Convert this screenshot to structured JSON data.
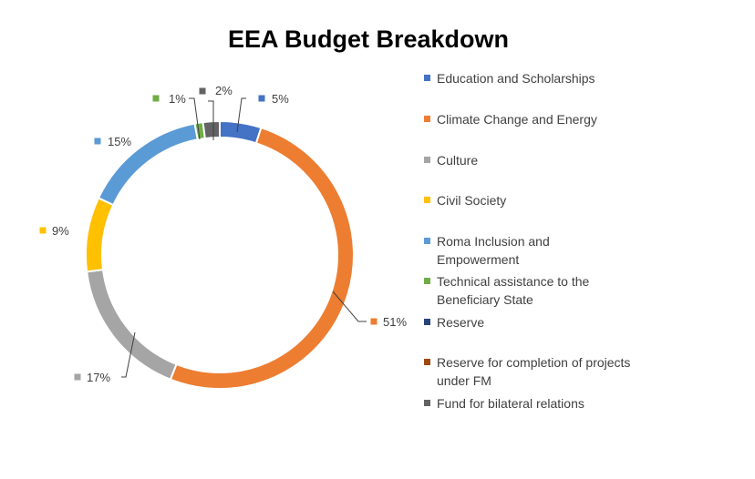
{
  "chart_data": {
    "type": "pie",
    "variant": "doughnut",
    "title": "EEA Budget Breakdown",
    "series": [
      {
        "name": "Education and Scholarships",
        "value": 5,
        "label": "5%",
        "color": "#4472C4"
      },
      {
        "name": "Climate Change and Energy",
        "value": 51,
        "label": "51%",
        "color": "#ED7D31"
      },
      {
        "name": "Culture",
        "value": 17,
        "label": "17%",
        "color": "#A5A5A5"
      },
      {
        "name": "Civil Society",
        "value": 9,
        "label": "9%",
        "color": "#FFC000"
      },
      {
        "name": "Roma Inclusion and Empowerment",
        "value": 15,
        "label": "15%",
        "color": "#5B9BD5"
      },
      {
        "name": "Technical assistance to the Beneficiary State",
        "value": 1,
        "label": "1%",
        "color": "#70AD47"
      },
      {
        "name": "Reserve",
        "value": 0,
        "label": "",
        "color": "#264478"
      },
      {
        "name": "Reserve for completion of projects under FM",
        "value": 0,
        "label": "",
        "color": "#9E480E"
      },
      {
        "name": "Fund for bilateral relations",
        "value": 2,
        "label": "2%",
        "color": "#636363"
      }
    ],
    "legend_position": "right"
  }
}
